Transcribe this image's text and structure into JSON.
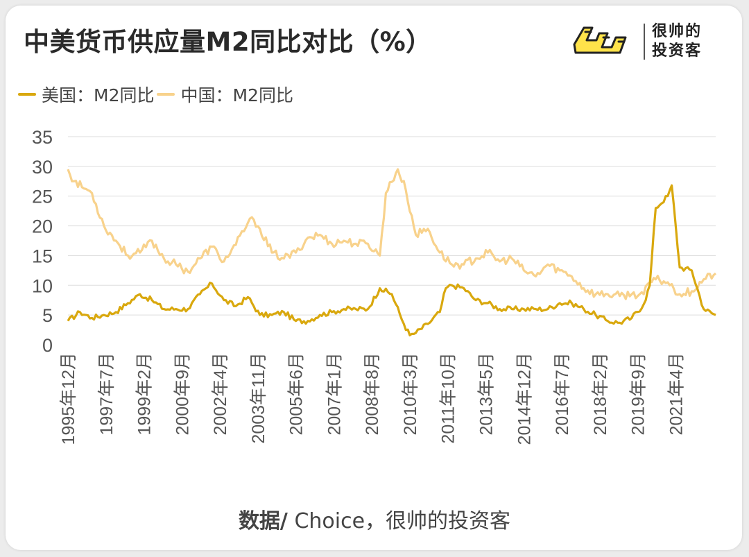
{
  "title": "中美货币供应量M2同比对比（%）",
  "brand": {
    "line1": "很帅的",
    "line2": "投资客"
  },
  "source": {
    "prefix": "数据/",
    "text": " Choice，很帅的投资客"
  },
  "colors": {
    "us": "#d9a80e",
    "china": "#f8d28c",
    "grid": "#dddddd",
    "axis_text": "#555555"
  },
  "chart_data": {
    "type": "line",
    "title": "中美货币供应量M2同比对比（%）",
    "xlabel": "",
    "ylabel": "",
    "ylim": [
      0,
      35
    ],
    "yticks": [
      0,
      5,
      10,
      15,
      20,
      25,
      30,
      35
    ],
    "grid": "horizontal",
    "legend_position": "top-left",
    "x_start": "1995-12",
    "x_end": "2022-12",
    "x_ticks": [
      "1995年12月",
      "1997年7月",
      "1999年2月",
      "2000年9月",
      "2002年4月",
      "2003年11月",
      "2005年6月",
      "2007年1月",
      "2008年8月",
      "2010年3月",
      "2011年10月",
      "2013年5月",
      "2014年12月",
      "2016年7月",
      "2018年2月",
      "2019年9月",
      "2021年4月"
    ],
    "series": [
      {
        "name": "美国：M2同比",
        "color": "#d9a80e",
        "points": [
          [
            "1995-12",
            4.0
          ],
          [
            "1996-06",
            5.5
          ],
          [
            "1996-12",
            4.5
          ],
          [
            "1997-06",
            5.0
          ],
          [
            "1997-12",
            5.5
          ],
          [
            "1998-06",
            7.0
          ],
          [
            "1998-12",
            8.5
          ],
          [
            "1999-06",
            7.5
          ],
          [
            "1999-12",
            6.0
          ],
          [
            "2000-06",
            6.0
          ],
          [
            "2000-12",
            6.0
          ],
          [
            "2001-06",
            8.5
          ],
          [
            "2001-12",
            10.3
          ],
          [
            "2002-06",
            7.5
          ],
          [
            "2002-12",
            6.5
          ],
          [
            "2003-06",
            8.0
          ],
          [
            "2003-12",
            5.0
          ],
          [
            "2004-06",
            5.0
          ],
          [
            "2004-12",
            5.5
          ],
          [
            "2005-06",
            4.0
          ],
          [
            "2005-12",
            4.0
          ],
          [
            "2006-06",
            5.0
          ],
          [
            "2006-12",
            5.5
          ],
          [
            "2007-06",
            6.0
          ],
          [
            "2007-12",
            6.0
          ],
          [
            "2008-06",
            6.0
          ],
          [
            "2008-12",
            9.5
          ],
          [
            "2009-06",
            8.5
          ],
          [
            "2009-12",
            3.5
          ],
          [
            "2010-03",
            1.6
          ],
          [
            "2010-06",
            2.0
          ],
          [
            "2010-12",
            3.5
          ],
          [
            "2011-06",
            5.5
          ],
          [
            "2011-09",
            9.5
          ],
          [
            "2011-12",
            10.0
          ],
          [
            "2012-06",
            9.5
          ],
          [
            "2012-12",
            7.5
          ],
          [
            "2013-06",
            7.0
          ],
          [
            "2013-12",
            6.0
          ],
          [
            "2014-06",
            6.0
          ],
          [
            "2014-12",
            6.0
          ],
          [
            "2015-06",
            6.0
          ],
          [
            "2015-12",
            6.0
          ],
          [
            "2016-06",
            7.0
          ],
          [
            "2016-12",
            7.0
          ],
          [
            "2017-06",
            6.0
          ],
          [
            "2017-12",
            5.0
          ],
          [
            "2018-06",
            4.0
          ],
          [
            "2018-12",
            3.7
          ],
          [
            "2019-06",
            4.5
          ],
          [
            "2019-12",
            6.8
          ],
          [
            "2020-03",
            10.0
          ],
          [
            "2020-06",
            23.0
          ],
          [
            "2020-12",
            25.0
          ],
          [
            "2021-02",
            26.8
          ],
          [
            "2021-06",
            13.0
          ],
          [
            "2021-12",
            12.5
          ],
          [
            "2022-06",
            6.0
          ],
          [
            "2022-12",
            5.0
          ]
        ]
      },
      {
        "name": "中国：M2同比",
        "color": "#f8d28c",
        "points": [
          [
            "1995-12",
            29.5
          ],
          [
            "1996-03",
            27.5
          ],
          [
            "1996-12",
            25.5
          ],
          [
            "1997-06",
            20.0
          ],
          [
            "1997-12",
            17.5
          ],
          [
            "1998-06",
            15.0
          ],
          [
            "1998-12",
            15.5
          ],
          [
            "1999-06",
            17.5
          ],
          [
            "1999-12",
            14.5
          ],
          [
            "2000-06",
            13.5
          ],
          [
            "2000-12",
            12.3
          ],
          [
            "2001-06",
            14.5
          ],
          [
            "2001-12",
            16.5
          ],
          [
            "2002-06",
            14.0
          ],
          [
            "2002-12",
            16.8
          ],
          [
            "2003-06",
            20.5
          ],
          [
            "2003-09",
            21.0
          ],
          [
            "2003-12",
            19.5
          ],
          [
            "2004-06",
            15.5
          ],
          [
            "2004-12",
            14.5
          ],
          [
            "2005-06",
            15.5
          ],
          [
            "2005-12",
            18.0
          ],
          [
            "2006-06",
            18.5
          ],
          [
            "2006-12",
            17.0
          ],
          [
            "2007-06",
            17.5
          ],
          [
            "2007-12",
            17.0
          ],
          [
            "2008-06",
            17.0
          ],
          [
            "2008-12",
            15.0
          ],
          [
            "2009-03",
            25.5
          ],
          [
            "2009-09",
            29.5
          ],
          [
            "2010-01",
            26.0
          ],
          [
            "2010-06",
            18.5
          ],
          [
            "2010-12",
            19.5
          ],
          [
            "2011-06",
            15.5
          ],
          [
            "2011-12",
            13.5
          ],
          [
            "2012-06",
            13.5
          ],
          [
            "2012-12",
            14.5
          ],
          [
            "2013-06",
            15.5
          ],
          [
            "2013-12",
            14.0
          ],
          [
            "2014-06",
            14.5
          ],
          [
            "2014-12",
            12.5
          ],
          [
            "2015-06",
            11.5
          ],
          [
            "2015-12",
            13.5
          ],
          [
            "2016-06",
            12.5
          ],
          [
            "2016-12",
            11.5
          ],
          [
            "2017-06",
            9.5
          ],
          [
            "2017-12",
            8.5
          ],
          [
            "2018-06",
            8.5
          ],
          [
            "2018-12",
            8.2
          ],
          [
            "2019-06",
            8.5
          ],
          [
            "2019-12",
            8.5
          ],
          [
            "2020-03",
            10.5
          ],
          [
            "2020-06",
            11.0
          ],
          [
            "2020-12",
            10.5
          ],
          [
            "2021-06",
            8.5
          ],
          [
            "2021-12",
            9.0
          ],
          [
            "2022-06",
            11.0
          ],
          [
            "2022-12",
            12.0
          ]
        ]
      }
    ]
  }
}
